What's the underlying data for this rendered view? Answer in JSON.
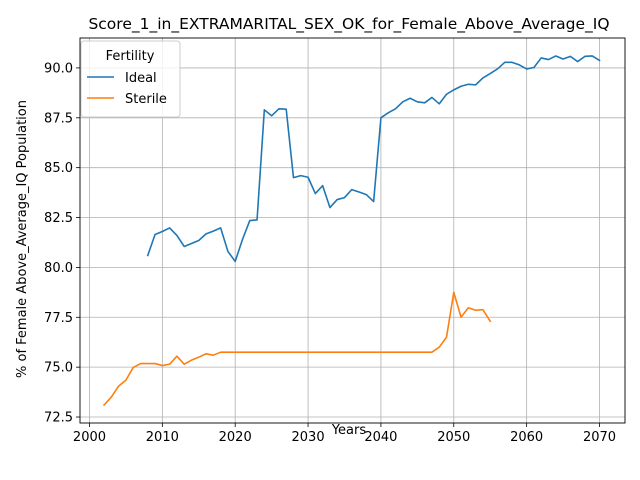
{
  "chart_data": {
    "type": "line",
    "title": "Score_1_in_EXTRAMARITAL_SEX_OK_for_Female_Above_Average_IQ",
    "xlabel": "Years",
    "ylabel": "% of Female Above_Average_IQ Population",
    "xlim": [
      1998.7,
      2073.5
    ],
    "ylim": [
      72.2,
      91.5
    ],
    "xticks": [
      2000,
      2010,
      2020,
      2030,
      2040,
      2050,
      2060,
      2070
    ],
    "yticks": [
      72.5,
      75.0,
      77.5,
      80.0,
      82.5,
      85.0,
      87.5,
      90.0
    ],
    "ytick_labels": [
      "72.5",
      "75.0",
      "77.5",
      "80.0",
      "82.5",
      "85.0",
      "87.5",
      "90.0"
    ],
    "grid": true,
    "legend": {
      "title": "Fertility",
      "placement": "top-left"
    },
    "series": [
      {
        "name": "Ideal",
        "color": "#1f77b4",
        "points": [
          [
            2008,
            80.6
          ],
          [
            2009,
            81.65
          ],
          [
            2010,
            81.8
          ],
          [
            2011,
            81.98
          ],
          [
            2012,
            81.6
          ],
          [
            2013,
            81.05
          ],
          [
            2014,
            81.2
          ],
          [
            2015,
            81.35
          ],
          [
            2016,
            81.68
          ],
          [
            2017,
            81.82
          ],
          [
            2018,
            81.98
          ],
          [
            2019,
            80.8
          ],
          [
            2020,
            80.3
          ],
          [
            2021,
            81.4
          ],
          [
            2022,
            82.35
          ],
          [
            2023,
            82.38
          ],
          [
            2024,
            87.9
          ],
          [
            2025,
            87.6
          ],
          [
            2026,
            87.95
          ],
          [
            2027,
            87.93
          ],
          [
            2028,
            84.5
          ],
          [
            2029,
            84.6
          ],
          [
            2030,
            84.52
          ],
          [
            2031,
            83.7
          ],
          [
            2032,
            84.1
          ],
          [
            2033,
            83.0
          ],
          [
            2034,
            83.4
          ],
          [
            2035,
            83.5
          ],
          [
            2036,
            83.9
          ],
          [
            2037,
            83.78
          ],
          [
            2038,
            83.65
          ],
          [
            2039,
            83.3
          ],
          [
            2040,
            87.5
          ],
          [
            2041,
            87.75
          ],
          [
            2042,
            87.95
          ],
          [
            2043,
            88.3
          ],
          [
            2044,
            88.48
          ],
          [
            2045,
            88.3
          ],
          [
            2046,
            88.25
          ],
          [
            2047,
            88.52
          ],
          [
            2048,
            88.2
          ],
          [
            2049,
            88.68
          ],
          [
            2050,
            88.9
          ],
          [
            2051,
            89.08
          ],
          [
            2052,
            89.18
          ],
          [
            2053,
            89.15
          ],
          [
            2054,
            89.5
          ],
          [
            2055,
            89.72
          ],
          [
            2056,
            89.95
          ],
          [
            2057,
            90.28
          ],
          [
            2058,
            90.28
          ],
          [
            2059,
            90.15
          ],
          [
            2060,
            89.95
          ],
          [
            2061,
            90.02
          ],
          [
            2062,
            90.5
          ],
          [
            2063,
            90.42
          ],
          [
            2064,
            90.6
          ],
          [
            2065,
            90.45
          ],
          [
            2066,
            90.58
          ],
          [
            2067,
            90.32
          ],
          [
            2068,
            90.58
          ],
          [
            2069,
            90.6
          ],
          [
            2070,
            90.38
          ]
        ]
      },
      {
        "name": "Sterile",
        "color": "#ff7f0e",
        "points": [
          [
            2002,
            73.1
          ],
          [
            2003,
            73.5
          ],
          [
            2004,
            74.05
          ],
          [
            2005,
            74.35
          ],
          [
            2006,
            74.98
          ],
          [
            2007,
            75.18
          ],
          [
            2008,
            75.18
          ],
          [
            2009,
            75.18
          ],
          [
            2010,
            75.08
          ],
          [
            2011,
            75.15
          ],
          [
            2012,
            75.55
          ],
          [
            2013,
            75.15
          ],
          [
            2014,
            75.35
          ],
          [
            2015,
            75.5
          ],
          [
            2016,
            75.67
          ],
          [
            2017,
            75.6
          ],
          [
            2018,
            75.75
          ],
          [
            2019,
            75.75
          ],
          [
            2020,
            75.75
          ],
          [
            2025,
            75.75
          ],
          [
            2030,
            75.75
          ],
          [
            2035,
            75.75
          ],
          [
            2040,
            75.75
          ],
          [
            2045,
            75.75
          ],
          [
            2047,
            75.75
          ],
          [
            2048,
            76.0
          ],
          [
            2049,
            76.5
          ],
          [
            2050,
            78.75
          ],
          [
            2051,
            77.5
          ],
          [
            2052,
            77.98
          ],
          [
            2053,
            77.85
          ],
          [
            2054,
            77.88
          ],
          [
            2055,
            77.3
          ]
        ]
      }
    ]
  }
}
